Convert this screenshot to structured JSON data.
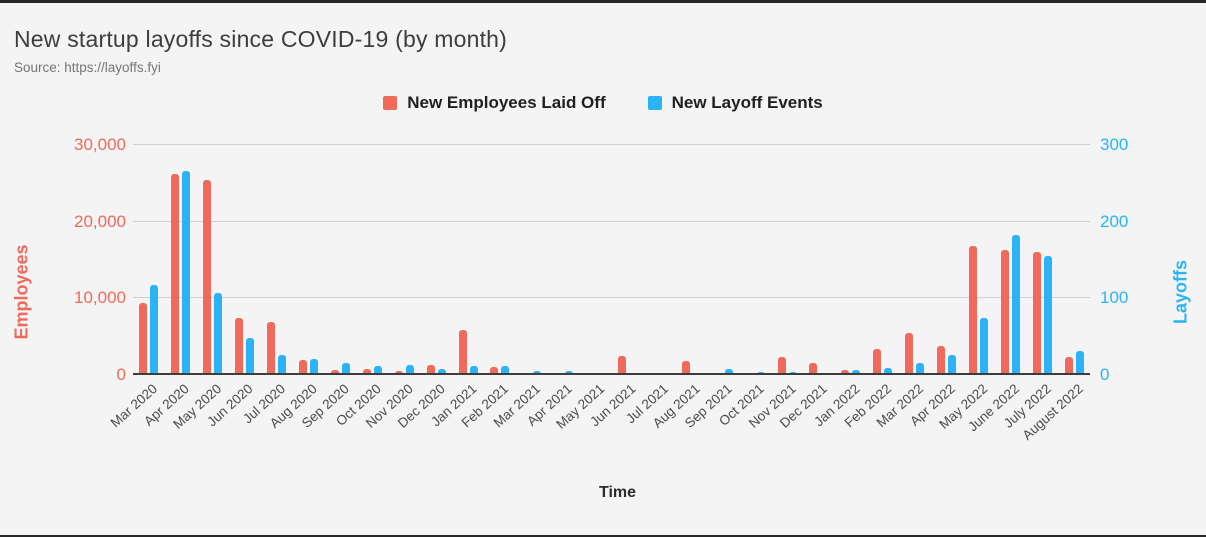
{
  "header": {
    "title": "New startup layoffs since COVID-19 (by month)",
    "source": "Source: https://layoffs.fyi"
  },
  "legend": [
    {
      "label": "New Employees Laid Off",
      "color": "#ef6a5a"
    },
    {
      "label": "New Layoff Events",
      "color": "#2ab4f5"
    }
  ],
  "colors": {
    "employees": "#ef6a5a",
    "events": "#2ab4f5",
    "title_text": "#3d3d3d",
    "source_text": "#757575",
    "background": "#f4f4f4"
  },
  "chart_data": {
    "type": "bar",
    "title": "New startup layoffs since COVID-19 (by month)",
    "xlabel": "Time",
    "grid": true,
    "legend_position": "top",
    "categories": [
      "Mar 2020",
      "Apr 2020",
      "May 2020",
      "Jun 2020",
      "Jul 2020",
      "Aug 2020",
      "Sep 2020",
      "Oct 2020",
      "Nov 2020",
      "Dec 2020",
      "Jan 2021",
      "Feb 2021",
      "Mar 2021",
      "Apr 2021",
      "May 2021",
      "Jun 2021",
      "Jul 2021",
      "Aug 2021",
      "Sep 2021",
      "Oct 2021",
      "Nov 2021",
      "Dec 2021",
      "Jan 2022",
      "Feb 2022",
      "Mar 2022",
      "Apr 2022",
      "May 2022",
      "June 2022",
      "July 2022",
      "August 2022"
    ],
    "series": [
      {
        "name": "New Employees Laid Off",
        "axis": "left",
        "color": "#ef6a5a",
        "values": [
          9400,
          26200,
          25400,
          7500,
          6900,
          2000,
          700,
          800,
          500,
          1300,
          5900,
          1000,
          200,
          300,
          0,
          2500,
          0,
          1800,
          300,
          300,
          2300,
          1600,
          700,
          3400,
          5500,
          3800,
          16800,
          16300,
          16000,
          2400
        ]
      },
      {
        "name": "New Layoff Events",
        "axis": "right",
        "color": "#2ab4f5",
        "values": [
          118,
          266,
          107,
          48,
          26,
          21,
          16,
          12,
          13,
          8,
          12,
          12,
          5,
          5,
          0,
          2,
          0,
          3,
          8,
          4,
          4,
          3,
          7,
          9,
          16,
          26,
          74,
          183,
          155,
          32
        ]
      }
    ],
    "left_axis": {
      "title": "Employees",
      "color": "#ef6a5a",
      "ylim": [
        0,
        30000
      ],
      "tick_labels": [
        "0",
        "10,000",
        "20,000",
        "30,000"
      ]
    },
    "right_axis": {
      "title": "Layoffs",
      "color": "#2ab4f5",
      "ylim": [
        0,
        300
      ],
      "tick_labels": [
        "0",
        "100",
        "200",
        "300"
      ]
    }
  }
}
